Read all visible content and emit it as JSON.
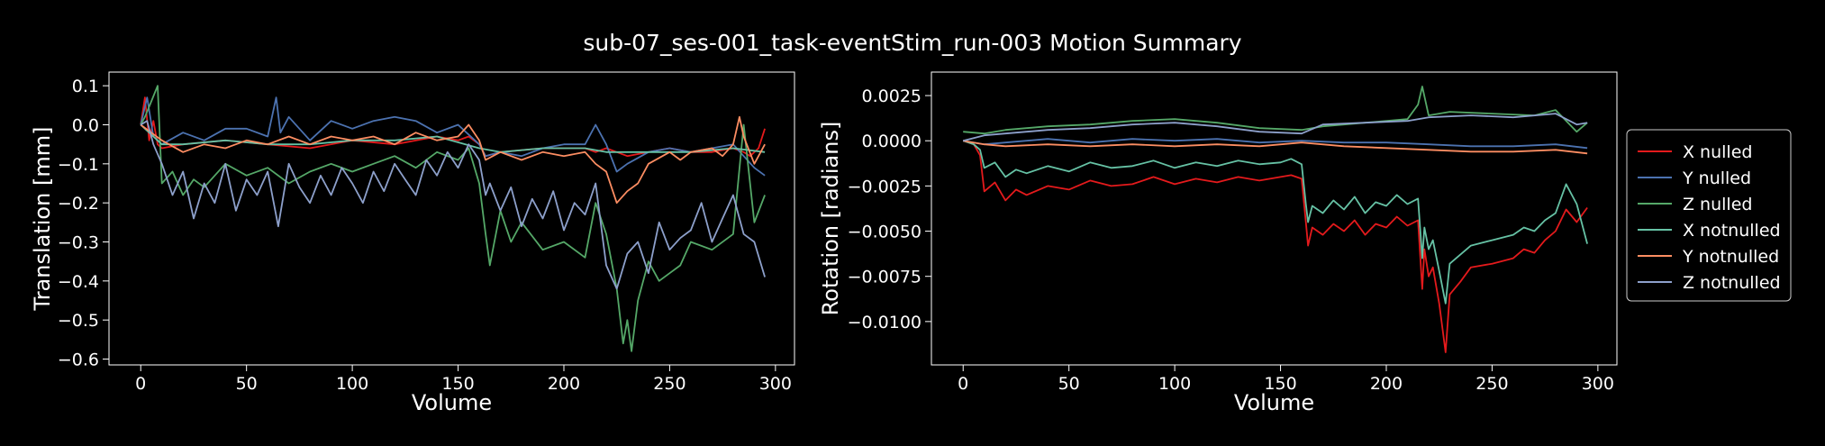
{
  "figure": {
    "title": "sub-07_ses-001_task-eventStim_run-003 Motion Summary",
    "background": "#000000",
    "foreground": "#ffffff"
  },
  "legend": {
    "placement": "outside-right",
    "entries": [
      {
        "label": "X nulled",
        "color": "#e41a1c"
      },
      {
        "label": "Y nulled",
        "color": "#4c72b0"
      },
      {
        "label": "Z nulled",
        "color": "#55a868"
      },
      {
        "label": "X notnulled",
        "color": "#66c2a5"
      },
      {
        "label": "Y notnulled",
        "color": "#fc8d62"
      },
      {
        "label": "Z notnulled",
        "color": "#8da0cb"
      }
    ]
  },
  "chart_data": [
    {
      "type": "line",
      "xlabel": "Volume",
      "ylabel": "Translation [mm]",
      "xlim": [
        -15,
        309
      ],
      "ylim": [
        -0.615,
        0.135
      ],
      "xticks": [
        0,
        50,
        100,
        150,
        200,
        250,
        300
      ],
      "yticks": [
        0.1,
        0.0,
        -0.1,
        -0.2,
        -0.3,
        -0.4,
        -0.5,
        -0.6
      ],
      "ytick_labels": [
        "0.1",
        "0.0",
        "−0.1",
        "−0.2",
        "−0.3",
        "−0.4",
        "−0.5",
        "−0.6"
      ],
      "grid": false,
      "series": [
        {
          "name": "X nulled",
          "color": "#e41a1c",
          "x": [
            0,
            2,
            4,
            6,
            8,
            10,
            20,
            40,
            60,
            80,
            100,
            120,
            140,
            150,
            155,
            160,
            163,
            170,
            190,
            210,
            215,
            220,
            225,
            230,
            240,
            250,
            260,
            270,
            280,
            285,
            288,
            292,
            295
          ],
          "y": [
            0.0,
            0.07,
            -0.04,
            0.01,
            -0.05,
            -0.06,
            -0.05,
            -0.04,
            -0.05,
            -0.06,
            -0.04,
            -0.05,
            -0.03,
            -0.04,
            -0.03,
            -0.05,
            -0.08,
            -0.07,
            -0.06,
            -0.06,
            -0.07,
            -0.06,
            -0.07,
            -0.08,
            -0.07,
            -0.06,
            -0.07,
            -0.07,
            -0.06,
            -0.07,
            -0.08,
            -0.06,
            -0.01
          ]
        },
        {
          "name": "Y nulled",
          "color": "#4c72b0",
          "x": [
            0,
            3,
            6,
            10,
            20,
            30,
            40,
            50,
            60,
            64,
            66,
            70,
            80,
            90,
            100,
            110,
            120,
            130,
            140,
            150,
            160,
            163,
            170,
            180,
            190,
            200,
            210,
            215,
            220,
            225,
            230,
            240,
            250,
            260,
            270,
            280,
            285,
            290,
            295
          ],
          "y": [
            0.0,
            0.07,
            -0.03,
            -0.05,
            -0.02,
            -0.04,
            -0.01,
            -0.01,
            -0.03,
            0.07,
            -0.02,
            0.02,
            -0.04,
            0.01,
            -0.01,
            0.01,
            0.02,
            0.01,
            -0.02,
            0.0,
            -0.05,
            -0.08,
            -0.07,
            -0.08,
            -0.06,
            -0.05,
            -0.05,
            0.0,
            -0.05,
            -0.12,
            -0.1,
            -0.07,
            -0.06,
            -0.07,
            -0.06,
            -0.05,
            -0.08,
            -0.11,
            -0.13
          ]
        },
        {
          "name": "Z nulled",
          "color": "#55a868",
          "x": [
            0,
            2,
            5,
            8,
            10,
            15,
            20,
            25,
            30,
            40,
            50,
            60,
            70,
            80,
            90,
            100,
            110,
            120,
            130,
            140,
            150,
            155,
            160,
            163,
            165,
            170,
            175,
            180,
            190,
            200,
            210,
            215,
            220,
            225,
            228,
            230,
            232,
            235,
            240,
            245,
            250,
            255,
            260,
            270,
            280,
            285,
            290,
            295
          ],
          "y": [
            0.0,
            0.02,
            0.06,
            0.1,
            -0.15,
            -0.12,
            -0.18,
            -0.14,
            -0.16,
            -0.1,
            -0.13,
            -0.11,
            -0.15,
            -0.12,
            -0.1,
            -0.12,
            -0.1,
            -0.08,
            -0.11,
            -0.07,
            -0.09,
            -0.06,
            -0.15,
            -0.28,
            -0.36,
            -0.22,
            -0.3,
            -0.25,
            -0.32,
            -0.3,
            -0.34,
            -0.2,
            -0.28,
            -0.42,
            -0.56,
            -0.5,
            -0.58,
            -0.45,
            -0.35,
            -0.4,
            -0.38,
            -0.36,
            -0.3,
            -0.32,
            -0.28,
            0.0,
            -0.25,
            -0.18
          ]
        },
        {
          "name": "X notnulled",
          "color": "#66c2a5",
          "x": [
            0,
            10,
            20,
            40,
            60,
            80,
            100,
            120,
            140,
            160,
            170,
            190,
            210,
            220,
            240,
            260,
            280,
            295
          ],
          "y": [
            0.0,
            -0.05,
            -0.05,
            -0.04,
            -0.05,
            -0.05,
            -0.04,
            -0.04,
            -0.03,
            -0.06,
            -0.07,
            -0.06,
            -0.06,
            -0.07,
            -0.07,
            -0.07,
            -0.06,
            -0.07
          ]
        },
        {
          "name": "Y notnulled",
          "color": "#fc8d62",
          "x": [
            0,
            5,
            10,
            20,
            30,
            40,
            50,
            60,
            70,
            80,
            90,
            100,
            110,
            120,
            130,
            140,
            150,
            155,
            160,
            163,
            170,
            180,
            190,
            200,
            210,
            215,
            220,
            225,
            230,
            235,
            240,
            250,
            255,
            260,
            270,
            275,
            280,
            283,
            285,
            290,
            295
          ],
          "y": [
            0.0,
            -0.02,
            -0.04,
            -0.07,
            -0.05,
            -0.06,
            -0.04,
            -0.05,
            -0.03,
            -0.05,
            -0.03,
            -0.04,
            -0.03,
            -0.05,
            -0.02,
            -0.04,
            -0.03,
            0.0,
            -0.04,
            -0.09,
            -0.07,
            -0.09,
            -0.07,
            -0.08,
            -0.07,
            -0.1,
            -0.12,
            -0.2,
            -0.17,
            -0.15,
            -0.1,
            -0.07,
            -0.09,
            -0.07,
            -0.06,
            -0.08,
            -0.05,
            0.02,
            -0.03,
            -0.1,
            -0.05
          ]
        },
        {
          "name": "Z notnulled",
          "color": "#8da0cb",
          "x": [
            0,
            3,
            6,
            10,
            15,
            20,
            25,
            30,
            35,
            40,
            45,
            50,
            55,
            60,
            65,
            70,
            75,
            80,
            85,
            90,
            95,
            100,
            105,
            110,
            115,
            120,
            125,
            130,
            135,
            140,
            145,
            150,
            155,
            160,
            163,
            165,
            170,
            175,
            180,
            185,
            190,
            195,
            200,
            205,
            210,
            215,
            220,
            225,
            230,
            235,
            240,
            245,
            250,
            255,
            260,
            265,
            270,
            275,
            280,
            285,
            290,
            295
          ],
          "y": [
            0.0,
            0.01,
            -0.05,
            -0.1,
            -0.18,
            -0.12,
            -0.24,
            -0.15,
            -0.2,
            -0.1,
            -0.22,
            -0.14,
            -0.18,
            -0.12,
            -0.26,
            -0.1,
            -0.16,
            -0.2,
            -0.13,
            -0.18,
            -0.11,
            -0.15,
            -0.2,
            -0.12,
            -0.17,
            -0.1,
            -0.14,
            -0.18,
            -0.09,
            -0.13,
            -0.07,
            -0.11,
            -0.05,
            -0.09,
            -0.18,
            -0.15,
            -0.22,
            -0.16,
            -0.26,
            -0.19,
            -0.24,
            -0.17,
            -0.27,
            -0.2,
            -0.23,
            -0.15,
            -0.36,
            -0.42,
            -0.33,
            -0.3,
            -0.38,
            -0.25,
            -0.32,
            -0.29,
            -0.27,
            -0.2,
            -0.3,
            -0.24,
            -0.18,
            -0.28,
            -0.3,
            -0.39
          ]
        }
      ]
    },
    {
      "type": "line",
      "xlabel": "Volume",
      "ylabel": "Rotation [radians]",
      "xlim": [
        -15,
        309
      ],
      "ylim": [
        -0.0124,
        0.0038
      ],
      "xticks": [
        0,
        50,
        100,
        150,
        200,
        250,
        300
      ],
      "yticks": [
        0.0025,
        0.0,
        -0.0025,
        -0.005,
        -0.0075,
        -0.01
      ],
      "ytick_labels": [
        "0.0025",
        "0.0000",
        "−0.0025",
        "−0.0050",
        "−0.0075",
        "−0.0100"
      ],
      "grid": false,
      "series": [
        {
          "name": "X nulled",
          "color": "#e41a1c",
          "x": [
            0,
            5,
            8,
            10,
            15,
            20,
            25,
            30,
            40,
            50,
            60,
            70,
            80,
            90,
            100,
            110,
            120,
            130,
            140,
            150,
            155,
            160,
            162,
            163,
            165,
            170,
            175,
            180,
            185,
            190,
            195,
            200,
            205,
            210,
            215,
            217,
            218,
            220,
            222,
            225,
            228,
            230,
            235,
            240,
            250,
            260,
            265,
            270,
            275,
            280,
            285,
            290,
            295
          ],
          "y": [
            0.0,
            -0.0002,
            -0.0008,
            -0.0028,
            -0.0023,
            -0.0033,
            -0.0027,
            -0.003,
            -0.0025,
            -0.0027,
            -0.0022,
            -0.0025,
            -0.0024,
            -0.002,
            -0.0024,
            -0.0021,
            -0.0023,
            -0.002,
            -0.0022,
            -0.002,
            -0.0019,
            -0.0021,
            -0.0045,
            -0.0058,
            -0.0048,
            -0.0052,
            -0.0046,
            -0.005,
            -0.0044,
            -0.0052,
            -0.0046,
            -0.0048,
            -0.0042,
            -0.0047,
            -0.0044,
            -0.0082,
            -0.006,
            -0.0075,
            -0.007,
            -0.009,
            -0.0117,
            -0.0085,
            -0.0078,
            -0.007,
            -0.0068,
            -0.0065,
            -0.006,
            -0.0062,
            -0.0055,
            -0.005,
            -0.0038,
            -0.0045,
            -0.0037
          ]
        },
        {
          "name": "Y nulled",
          "color": "#4c72b0",
          "x": [
            0,
            10,
            20,
            40,
            60,
            80,
            100,
            120,
            140,
            160,
            180,
            200,
            220,
            240,
            260,
            280,
            295
          ],
          "y": [
            0.0,
            -0.0002,
            -0.0001,
            0.0001,
            -0.0001,
            0.0001,
            0.0,
            0.0001,
            -0.0001,
            0.0,
            -0.0001,
            -0.0001,
            -0.0002,
            -0.0003,
            -0.0003,
            -0.0002,
            -0.0004
          ]
        },
        {
          "name": "Z nulled",
          "color": "#55a868",
          "x": [
            0,
            10,
            20,
            40,
            60,
            80,
            100,
            120,
            140,
            160,
            170,
            190,
            210,
            215,
            217,
            220,
            230,
            250,
            270,
            280,
            290,
            295
          ],
          "y": [
            0.0005,
            0.0004,
            0.0006,
            0.0008,
            0.0009,
            0.0011,
            0.0012,
            0.001,
            0.0007,
            0.0006,
            0.0008,
            0.001,
            0.0012,
            0.002,
            0.003,
            0.0014,
            0.0016,
            0.0015,
            0.0014,
            0.0017,
            0.0005,
            0.001
          ]
        },
        {
          "name": "X notnulled",
          "color": "#66c2a5",
          "x": [
            0,
            5,
            8,
            10,
            15,
            20,
            25,
            30,
            40,
            50,
            60,
            70,
            80,
            90,
            100,
            110,
            120,
            130,
            140,
            150,
            155,
            160,
            162,
            163,
            165,
            170,
            175,
            180,
            185,
            190,
            195,
            200,
            205,
            210,
            215,
            217,
            218,
            220,
            222,
            225,
            228,
            230,
            235,
            240,
            250,
            260,
            265,
            270,
            275,
            280,
            285,
            290,
            295
          ],
          "y": [
            0.0,
            -0.0002,
            -0.0005,
            -0.0015,
            -0.0012,
            -0.002,
            -0.0016,
            -0.0018,
            -0.0014,
            -0.0017,
            -0.0012,
            -0.0015,
            -0.0014,
            -0.0011,
            -0.0015,
            -0.0012,
            -0.0014,
            -0.0011,
            -0.0013,
            -0.0012,
            -0.001,
            -0.0013,
            -0.0035,
            -0.0045,
            -0.0036,
            -0.004,
            -0.0033,
            -0.0038,
            -0.0031,
            -0.004,
            -0.0034,
            -0.0036,
            -0.003,
            -0.0035,
            -0.0032,
            -0.0065,
            -0.0048,
            -0.006,
            -0.0055,
            -0.0072,
            -0.009,
            -0.0068,
            -0.0063,
            -0.0058,
            -0.0055,
            -0.0052,
            -0.0048,
            -0.005,
            -0.0044,
            -0.004,
            -0.0024,
            -0.0035,
            -0.0057
          ]
        },
        {
          "name": "Y notnulled",
          "color": "#fc8d62",
          "x": [
            0,
            10,
            20,
            40,
            60,
            80,
            100,
            120,
            140,
            160,
            180,
            200,
            220,
            240,
            260,
            280,
            295
          ],
          "y": [
            0.0,
            -0.0002,
            -0.0003,
            -0.0002,
            -0.0003,
            -0.0002,
            -0.0003,
            -0.0002,
            -0.0003,
            -0.0001,
            -0.0003,
            -0.0004,
            -0.0005,
            -0.0006,
            -0.0006,
            -0.0005,
            -0.0007
          ]
        },
        {
          "name": "Z notnulled",
          "color": "#8da0cb",
          "x": [
            0,
            10,
            20,
            40,
            60,
            80,
            100,
            120,
            140,
            160,
            170,
            190,
            210,
            220,
            240,
            260,
            280,
            290,
            295
          ],
          "y": [
            0.0,
            0.0003,
            0.0004,
            0.0006,
            0.0007,
            0.0009,
            0.001,
            0.0008,
            0.0005,
            0.0004,
            0.0009,
            0.001,
            0.0011,
            0.0013,
            0.0014,
            0.0013,
            0.0015,
            0.0009,
            0.001
          ]
        }
      ]
    }
  ]
}
